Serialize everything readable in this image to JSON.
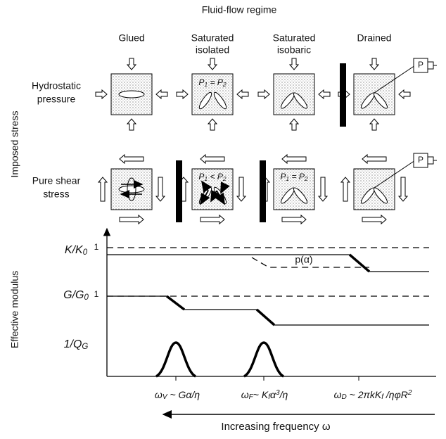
{
  "title": "Fluid-flow regime",
  "columns": [
    "Glued",
    [
      "Saturated",
      "isolated"
    ],
    [
      "Saturated",
      "isobaric"
    ],
    "Drained"
  ],
  "rows": [
    [
      "Hydrostatic",
      "pressure"
    ],
    [
      "Pure shear",
      "stress"
    ]
  ],
  "imposed_axis": "Imposed stress",
  "modulus_axis": "Effective modulus",
  "box_labels": {
    "isolated_hydro": [
      {
        "text": "P"
      },
      {
        "text": "1",
        "style": "sub"
      },
      {
        "text": " = P"
      },
      {
        "text": "2",
        "style": "sub"
      }
    ],
    "isolated_shear": [
      {
        "text": "P"
      },
      {
        "text": "1",
        "style": "sub"
      },
      {
        "text": " < P"
      },
      {
        "text": "2",
        "style": "sub"
      }
    ],
    "isobaric_shear": [
      {
        "text": "P"
      },
      {
        "text": "1",
        "style": "sub"
      },
      {
        "text": " = P"
      },
      {
        "text": "2",
        "style": "sub"
      }
    ],
    "pressure_gauge": [
      "P",
      "P"
    ]
  },
  "graph": {
    "k_label": [
      {
        "text": "K/K"
      },
      {
        "text": "0",
        "style": "sub"
      }
    ],
    "g_label": [
      {
        "text": "G/G"
      },
      {
        "text": "0",
        "style": "sub"
      }
    ],
    "q_label": [
      {
        "text": "1/Q"
      },
      {
        "text": "G",
        "style": "sub"
      }
    ],
    "unity_labels": [
      "1",
      "1"
    ],
    "p_label": "p(α)",
    "omega_v": [
      {
        "text": "ω"
      },
      {
        "text": "V",
        "style": "sub"
      },
      {
        "text": " ~ Gα/η"
      }
    ],
    "omega_f": [
      {
        "text": "ω"
      },
      {
        "text": "F",
        "style": "sub"
      },
      {
        "text": "~ K"
      },
      {
        "text": "f",
        "style": "sub"
      },
      {
        "text": "α"
      },
      {
        "text": "3",
        "style": "sup"
      },
      {
        "text": "/η"
      }
    ],
    "omega_d": [
      {
        "text": "ω"
      },
      {
        "text": "D",
        "style": "sub"
      },
      {
        "text": " ~ 2πkK"
      },
      {
        "text": "f",
        "style": "sub"
      },
      {
        "text": " /ηφR"
      },
      {
        "text": "2",
        "style": "sup"
      }
    ],
    "frequency_label": "Increasing frequency ω"
  }
}
